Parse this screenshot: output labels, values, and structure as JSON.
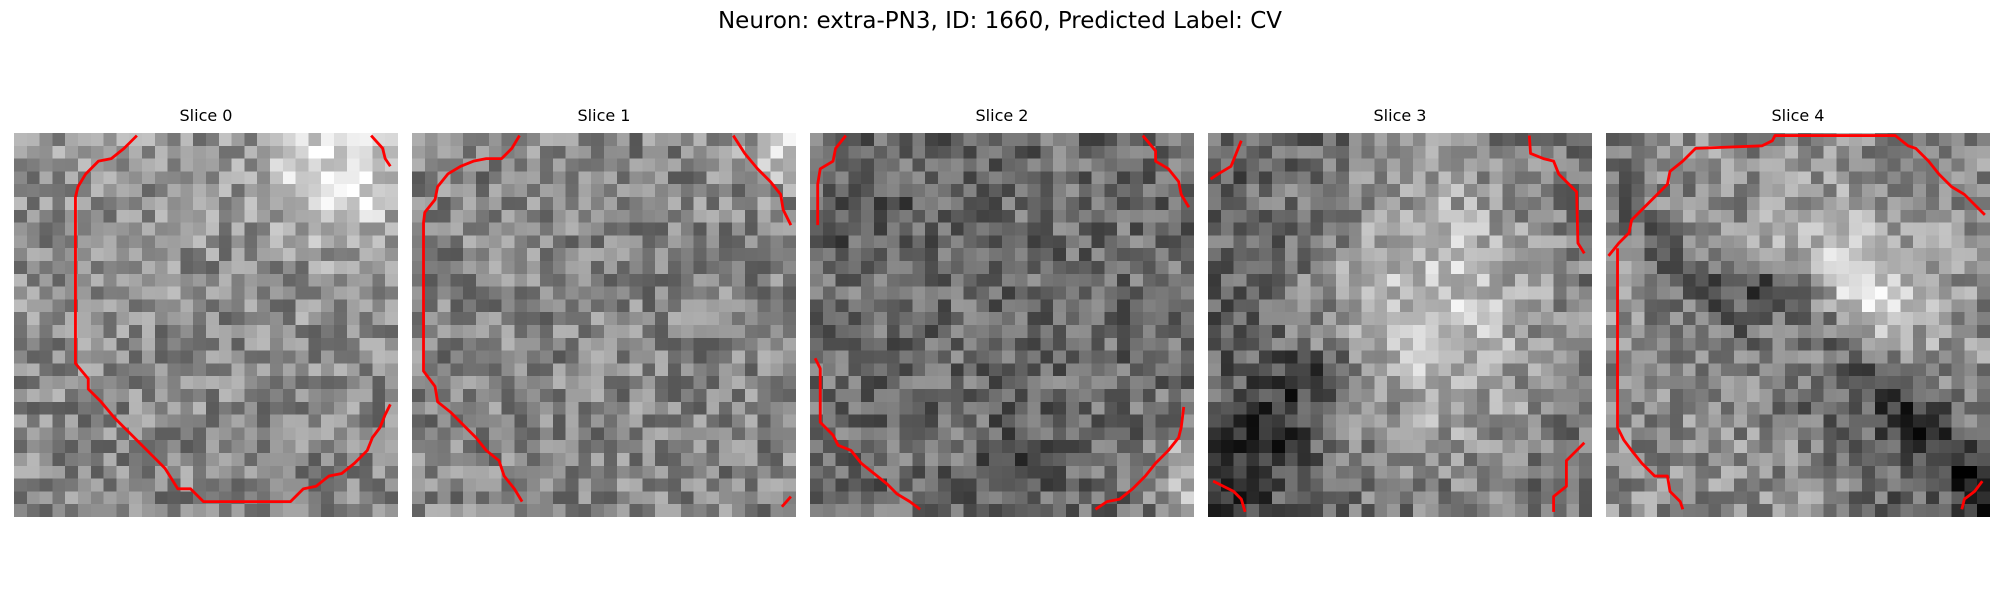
{
  "figure": {
    "title": "Neuron: extra-PN3, ID: 1660, Predicted Label: CV"
  },
  "colormap": "gray",
  "contour_color": "#ff0000",
  "image_grid": [
    30,
    30
  ],
  "slices": [
    {
      "label": "Slice 0",
      "brightness_pattern": "bright patch upper-right, mottled mid-gray elsewhere",
      "contour": [
        [
          [
            9.6,
            0.2
          ],
          [
            8.6,
            1.2
          ],
          [
            7.6,
            2.0
          ],
          [
            6.6,
            2.2
          ],
          [
            5.6,
            3.2
          ],
          [
            5.0,
            4.2
          ],
          [
            4.8,
            5.0
          ],
          [
            4.8,
            18.0
          ],
          [
            5.8,
            19.2
          ],
          [
            5.8,
            20.0
          ],
          [
            6.8,
            21.0
          ],
          [
            7.8,
            22.2
          ],
          [
            8.8,
            23.2
          ],
          [
            9.8,
            24.2
          ],
          [
            10.8,
            25.2
          ],
          [
            11.8,
            26.2
          ],
          [
            12.8,
            27.8
          ],
          [
            13.8,
            27.8
          ],
          [
            14.8,
            28.8
          ],
          [
            21.6,
            28.8
          ],
          [
            22.6,
            27.8
          ],
          [
            23.6,
            27.6
          ],
          [
            24.6,
            26.8
          ],
          [
            25.6,
            26.6
          ],
          [
            26.6,
            25.8
          ],
          [
            27.6,
            24.8
          ],
          [
            28.0,
            23.8
          ],
          [
            28.6,
            23.0
          ],
          [
            29.0,
            22.0
          ],
          [
            29.4,
            21.2
          ]
        ],
        [
          [
            27.9,
            0.2
          ],
          [
            28.8,
            1.2
          ],
          [
            29.0,
            2.0
          ],
          [
            29.4,
            2.6
          ]
        ]
      ]
    },
    {
      "label": "Slice 1",
      "brightness_pattern": "uniform mottled gray, brighter top-right corner",
      "contour": [
        [
          [
            8.4,
            0.2
          ],
          [
            7.8,
            1.2
          ],
          [
            7.0,
            2.0
          ],
          [
            5.8,
            2.0
          ],
          [
            4.8,
            2.2
          ],
          [
            3.8,
            2.6
          ],
          [
            2.8,
            3.2
          ],
          [
            2.0,
            4.2
          ],
          [
            1.8,
            5.2
          ],
          [
            1.0,
            6.2
          ],
          [
            0.9,
            7.0
          ],
          [
            0.9,
            18.6
          ],
          [
            1.8,
            19.8
          ],
          [
            2.0,
            21.0
          ],
          [
            3.0,
            21.8
          ],
          [
            4.0,
            22.8
          ],
          [
            5.0,
            23.8
          ],
          [
            5.8,
            24.8
          ],
          [
            6.8,
            25.6
          ],
          [
            7.2,
            26.8
          ],
          [
            8.0,
            27.8
          ],
          [
            8.6,
            28.8
          ]
        ],
        [
          [
            25.1,
            0.2
          ],
          [
            26.0,
            1.6
          ],
          [
            27.0,
            2.8
          ],
          [
            28.0,
            3.8
          ],
          [
            28.8,
            4.8
          ],
          [
            29.0,
            6.0
          ],
          [
            29.6,
            7.2
          ]
        ],
        [
          [
            29.6,
            28.4
          ],
          [
            28.9,
            29.2
          ]
        ]
      ]
    },
    {
      "label": "Slice 2",
      "brightness_pattern": "mid-gray with darker blotches, bright bottom-right corner",
      "contour": [
        [
          [
            2.8,
            0.2
          ],
          [
            2.0,
            1.2
          ],
          [
            1.8,
            2.2
          ],
          [
            0.8,
            2.8
          ],
          [
            0.6,
            4.0
          ],
          [
            0.6,
            7.2
          ]
        ],
        [
          [
            0.4,
            17.6
          ],
          [
            0.8,
            18.4
          ],
          [
            0.8,
            22.6
          ],
          [
            1.8,
            23.6
          ],
          [
            2.2,
            24.4
          ],
          [
            3.2,
            24.8
          ],
          [
            4.0,
            25.8
          ],
          [
            5.0,
            26.6
          ],
          [
            6.0,
            27.4
          ],
          [
            6.8,
            28.2
          ],
          [
            7.8,
            28.8
          ],
          [
            8.6,
            29.4
          ]
        ],
        [
          [
            26.0,
            0.2
          ],
          [
            27.0,
            1.4
          ],
          [
            27.0,
            2.2
          ],
          [
            28.0,
            2.8
          ],
          [
            28.8,
            3.8
          ],
          [
            29.0,
            4.8
          ],
          [
            29.6,
            5.8
          ]
        ],
        [
          [
            22.3,
            29.4
          ],
          [
            23.2,
            28.8
          ],
          [
            24.2,
            28.6
          ],
          [
            25.2,
            27.8
          ],
          [
            26.2,
            26.8
          ],
          [
            27.0,
            25.8
          ],
          [
            28.0,
            24.8
          ],
          [
            28.8,
            23.8
          ],
          [
            29.0,
            23.0
          ],
          [
            29.2,
            21.4
          ]
        ]
      ]
    },
    {
      "label": "Slice 3",
      "brightness_pattern": "bright central-right region, dark diagonal band lower-left",
      "contour": [
        [
          [
            2.6,
            0.6
          ],
          [
            2.2,
            1.6
          ],
          [
            1.8,
            2.6
          ],
          [
            0.8,
            3.2
          ],
          [
            0.2,
            3.6
          ]
        ],
        [
          [
            25.1,
            0.2
          ],
          [
            25.2,
            1.6
          ],
          [
            26.2,
            2.0
          ],
          [
            27.0,
            2.2
          ],
          [
            27.4,
            3.2
          ],
          [
            28.2,
            4.0
          ],
          [
            28.8,
            4.6
          ],
          [
            28.9,
            8.6
          ],
          [
            29.4,
            9.4
          ]
        ],
        [
          [
            0.4,
            27.2
          ],
          [
            1.2,
            27.6
          ],
          [
            2.0,
            28.0
          ],
          [
            2.6,
            28.6
          ],
          [
            2.9,
            29.6
          ]
        ],
        [
          [
            29.4,
            24.2
          ],
          [
            28.8,
            24.8
          ],
          [
            28.0,
            25.6
          ],
          [
            28.0,
            27.6
          ],
          [
            27.0,
            28.4
          ],
          [
            27.0,
            29.6
          ]
        ]
      ]
    },
    {
      "label": "Slice 4",
      "brightness_pattern": "bright upper-right blob, dark diagonal band lower-left to bottom-right",
      "contour": [
        [
          [
            0.2,
            9.6
          ],
          [
            1.0,
            8.6
          ],
          [
            1.8,
            7.8
          ],
          [
            2.0,
            6.8
          ],
          [
            2.8,
            6.0
          ],
          [
            3.8,
            5.0
          ],
          [
            4.8,
            4.0
          ],
          [
            5.0,
            3.0
          ],
          [
            6.0,
            2.2
          ],
          [
            7.0,
            1.2
          ],
          [
            12.2,
            1.0
          ],
          [
            13.0,
            0.6
          ],
          [
            13.2,
            0.2
          ],
          [
            22.6,
            0.2
          ],
          [
            23.6,
            1.0
          ],
          [
            24.2,
            1.2
          ],
          [
            25.2,
            2.2
          ],
          [
            26.0,
            3.2
          ],
          [
            27.0,
            4.2
          ],
          [
            28.0,
            4.8
          ],
          [
            29.0,
            5.8
          ],
          [
            29.6,
            6.4
          ]
        ],
        [
          [
            0.9,
            9.0
          ],
          [
            0.9,
            23.0
          ],
          [
            1.4,
            24.0
          ],
          [
            2.0,
            24.8
          ],
          [
            2.8,
            25.8
          ],
          [
            3.8,
            26.8
          ],
          [
            4.8,
            26.8
          ],
          [
            5.0,
            28.0
          ],
          [
            5.8,
            28.8
          ],
          [
            6.0,
            29.4
          ]
        ],
        [
          [
            29.4,
            27.2
          ],
          [
            28.8,
            28.0
          ],
          [
            28.0,
            28.6
          ],
          [
            27.8,
            29.4
          ]
        ]
      ]
    }
  ]
}
